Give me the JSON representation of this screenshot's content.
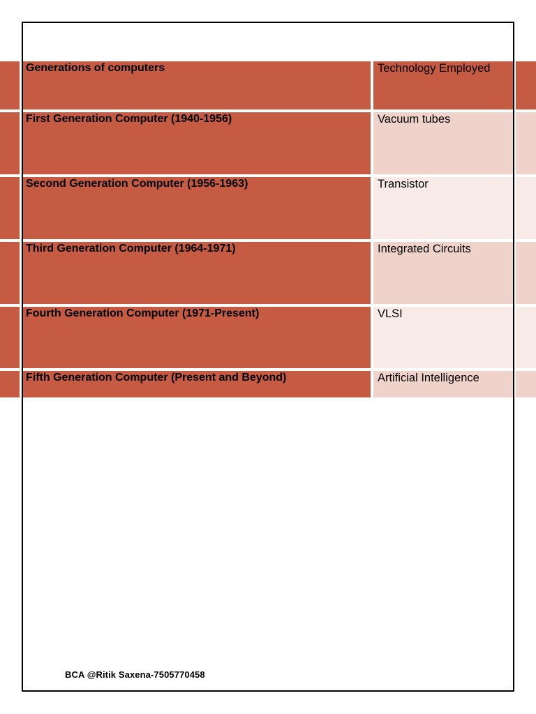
{
  "page": {
    "background_color": "#ffffff",
    "frame_border_color": "#000000"
  },
  "table": {
    "colors": {
      "accent_fill": "#C65B43",
      "band_dark_fill": "#EFD2CA",
      "band_light_fill": "#F8EBE7",
      "text": "#000000"
    },
    "header": {
      "col1": "Generations of computers",
      "col2": "Technology Employed"
    },
    "rows": [
      {
        "generation": "First Generation Computer (1940-1956)",
        "technology": "Vacuum tubes"
      },
      {
        "generation": "Second Generation Computer (1956-1963)",
        "technology": "Transistor"
      },
      {
        "generation": "Third Generation Computer (1964-1971)",
        "technology": "Integrated Circuits"
      },
      {
        "generation": "Fourth Generation Computer (1971-Present)",
        "technology": "VLSI"
      },
      {
        "generation": "Fifth Generation Computer (Present and Beyond)",
        "technology": "Artificial Intelligence"
      }
    ]
  },
  "footer": {
    "credit": "BCA @Ritik Saxena-7505770458"
  }
}
